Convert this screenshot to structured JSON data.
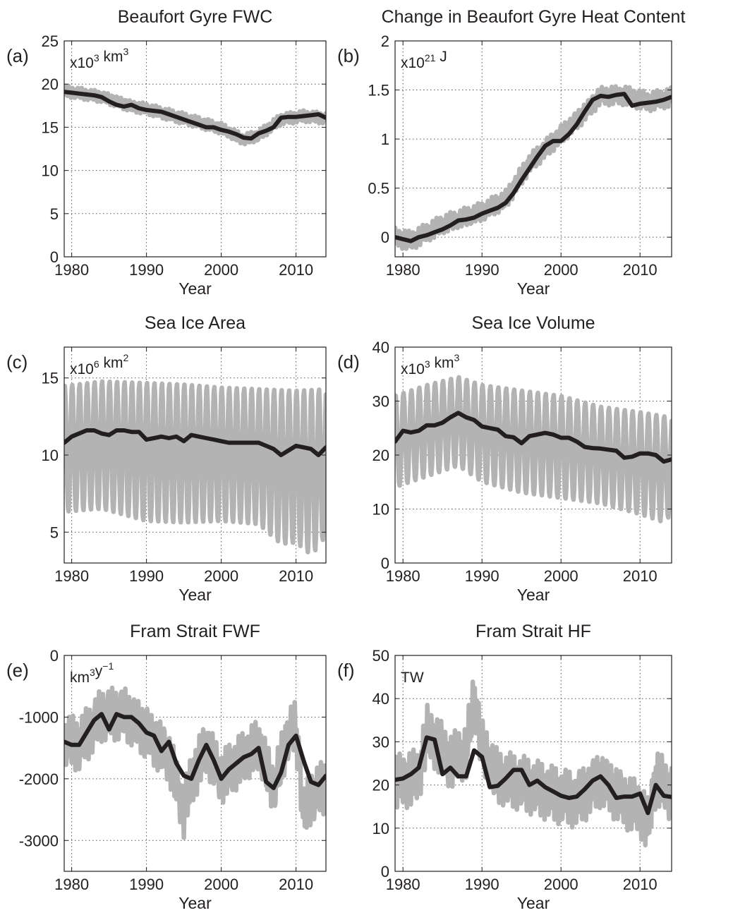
{
  "chart_data": [
    {
      "type": "line",
      "panel_label": "(a)",
      "title": "Beaufort Gyre FWC",
      "unit_label": {
        "base": "x10",
        "exp": "3",
        "rest": " km",
        "exp2": "3"
      },
      "xlabel": "Year",
      "xlim": [
        1979,
        2014
      ],
      "ylim": [
        0,
        25
      ],
      "xticks": [
        1980,
        1990,
        2000,
        2010
      ],
      "yticks": [
        0,
        5,
        10,
        15,
        20,
        25
      ],
      "ytick_labels": [
        "0",
        "5",
        "10",
        "15",
        "20",
        "25"
      ],
      "grid": true,
      "series": [
        {
          "role": "monthly",
          "color": "#b3b3b3",
          "amplitude": 0.6,
          "x": [
            1979,
            1984,
            1988,
            1990,
            1995,
            2000,
            2003,
            2005,
            2008,
            2011,
            2014
          ],
          "y": [
            19.2,
            18.6,
            17.5,
            17.2,
            16.0,
            14.8,
            13.5,
            14.0,
            15.9,
            16.3,
            16.1
          ]
        },
        {
          "role": "annual",
          "color": "#231f20",
          "x": [
            1979,
            1980,
            1981,
            1982,
            1983,
            1984,
            1985,
            1986,
            1987,
            1988,
            1989,
            1990,
            1991,
            1992,
            1993,
            1994,
            1995,
            1996,
            1997,
            1998,
            1999,
            2000,
            2001,
            2002,
            2003,
            2004,
            2005,
            2006,
            2007,
            2008,
            2009,
            2010,
            2011,
            2012,
            2013,
            2014
          ],
          "y": [
            19.1,
            19.0,
            18.9,
            18.8,
            18.7,
            18.5,
            18.0,
            17.6,
            17.4,
            17.6,
            17.2,
            17.0,
            16.9,
            16.8,
            16.5,
            16.2,
            15.9,
            15.6,
            15.3,
            15.0,
            15.0,
            14.7,
            14.5,
            14.2,
            13.8,
            13.7,
            14.3,
            14.6,
            15.0,
            16.1,
            16.2,
            16.2,
            16.3,
            16.4,
            16.5,
            16.1
          ]
        }
      ]
    },
    {
      "type": "line",
      "panel_label": "(b)",
      "title": "Change in Beaufort Gyre Heat Content",
      "unit_label": {
        "base": "x10",
        "exp": "21",
        "rest": " J",
        "exp2": ""
      },
      "xlabel": "Year",
      "xlim": [
        1979,
        2014
      ],
      "ylim": [
        -0.2,
        2
      ],
      "xticks": [
        1980,
        1990,
        2000,
        2010
      ],
      "yticks": [
        0,
        0.5,
        1,
        1.5,
        2
      ],
      "ytick_labels": [
        "0",
        "0.5",
        "1",
        "1.5",
        "2"
      ],
      "grid": true,
      "series": [
        {
          "role": "monthly",
          "color": "#b3b3b3",
          "amplitude": 0.09,
          "x": [
            1979,
            1981,
            1985,
            1990,
            1993,
            1996,
            1999,
            2002,
            2005,
            2008,
            2011,
            2014
          ],
          "y": [
            0.0,
            -0.04,
            0.12,
            0.25,
            0.38,
            0.75,
            0.98,
            1.2,
            1.45,
            1.45,
            1.38,
            1.42
          ]
        },
        {
          "role": "annual",
          "color": "#231f20",
          "x": [
            1979,
            1980,
            1981,
            1982,
            1983,
            1984,
            1985,
            1986,
            1987,
            1988,
            1989,
            1990,
            1991,
            1992,
            1993,
            1994,
            1995,
            1996,
            1997,
            1998,
            1999,
            2000,
            2001,
            2002,
            2003,
            2004,
            2005,
            2006,
            2007,
            2008,
            2009,
            2010,
            2011,
            2012,
            2013,
            2014
          ],
          "y": [
            0.0,
            -0.02,
            -0.04,
            0.0,
            0.02,
            0.05,
            0.08,
            0.12,
            0.17,
            0.18,
            0.2,
            0.24,
            0.27,
            0.3,
            0.35,
            0.45,
            0.58,
            0.7,
            0.82,
            0.93,
            0.98,
            0.98,
            1.05,
            1.15,
            1.28,
            1.4,
            1.44,
            1.43,
            1.45,
            1.46,
            1.34,
            1.36,
            1.37,
            1.38,
            1.4,
            1.43
          ]
        }
      ]
    },
    {
      "type": "line",
      "panel_label": "(c)",
      "title": "Sea Ice Area",
      "unit_label": {
        "base": "x10",
        "exp": "6",
        "rest": " km",
        "exp2": "2"
      },
      "xlabel": "Year",
      "xlim": [
        1979,
        2014
      ],
      "ylim": [
        3,
        17
      ],
      "xticks": [
        1980,
        1990,
        2000,
        2010
      ],
      "yticks": [
        5,
        10,
        15
      ],
      "ytick_labels": [
        "5",
        "10",
        "15"
      ],
      "grid": true,
      "series": [
        {
          "role": "monthly_max",
          "color": "#b3b3b3",
          "x": [
            1979,
            1984,
            1990,
            1995,
            2000,
            2005,
            2010,
            2014
          ],
          "y": [
            14.5,
            14.8,
            14.7,
            14.6,
            14.4,
            14.3,
            14.2,
            14.3
          ]
        },
        {
          "role": "monthly_min",
          "color": "#b3b3b3",
          "x": [
            1979,
            1984,
            1990,
            1995,
            2000,
            2005,
            2008,
            2010,
            2012,
            2013,
            2014
          ],
          "y": [
            6.3,
            6.5,
            5.7,
            5.6,
            5.7,
            5.5,
            4.2,
            4.3,
            3.5,
            4.0,
            4.8
          ]
        },
        {
          "role": "annual",
          "color": "#231f20",
          "x": [
            1979,
            1980,
            1981,
            1982,
            1983,
            1984,
            1985,
            1986,
            1987,
            1988,
            1989,
            1990,
            1991,
            1992,
            1993,
            1994,
            1995,
            1996,
            1997,
            1998,
            1999,
            2000,
            2001,
            2002,
            2003,
            2004,
            2005,
            2006,
            2007,
            2008,
            2009,
            2010,
            2011,
            2012,
            2013,
            2014
          ],
          "y": [
            10.8,
            11.2,
            11.4,
            11.6,
            11.6,
            11.4,
            11.3,
            11.6,
            11.6,
            11.5,
            11.5,
            11.0,
            11.1,
            11.2,
            11.1,
            11.2,
            10.9,
            11.3,
            11.2,
            11.1,
            11.0,
            10.9,
            10.8,
            10.8,
            10.8,
            10.8,
            10.8,
            10.6,
            10.4,
            10.0,
            10.3,
            10.6,
            10.5,
            10.4,
            10.0,
            10.5
          ]
        }
      ]
    },
    {
      "type": "line",
      "panel_label": "(d)",
      "title": "Sea Ice Volume",
      "unit_label": {
        "base": "x10",
        "exp": "3",
        "rest": " km",
        "exp2": "3"
      },
      "xlabel": "Year",
      "xlim": [
        1979,
        2014
      ],
      "ylim": [
        0,
        40
      ],
      "xticks": [
        1980,
        1990,
        2000,
        2010
      ],
      "yticks": [
        0,
        10,
        20,
        30,
        40
      ],
      "ytick_labels": [
        "0",
        "10",
        "20",
        "30",
        "40"
      ],
      "grid": true,
      "series": [
        {
          "role": "monthly_max",
          "color": "#b3b3b3",
          "x": [
            1979,
            1983,
            1987,
            1990,
            1995,
            2000,
            2005,
            2010,
            2014
          ],
          "y": [
            31,
            33,
            34.5,
            33,
            32,
            31,
            29,
            28,
            27
          ]
        },
        {
          "role": "monthly_min",
          "color": "#b3b3b3",
          "x": [
            1979,
            1983,
            1987,
            1990,
            1995,
            2000,
            2005,
            2010,
            2013,
            2014
          ],
          "y": [
            14,
            16,
            18,
            15,
            13,
            12,
            11,
            9,
            7.5,
            9
          ]
        },
        {
          "role": "annual",
          "color": "#231f20",
          "x": [
            1979,
            1980,
            1981,
            1982,
            1983,
            1984,
            1985,
            1986,
            1987,
            1988,
            1989,
            1990,
            1991,
            1992,
            1993,
            1994,
            1995,
            1996,
            1997,
            1998,
            1999,
            2000,
            2001,
            2002,
            2003,
            2004,
            2005,
            2006,
            2007,
            2008,
            2009,
            2010,
            2011,
            2012,
            2013,
            2014
          ],
          "y": [
            22.5,
            24.5,
            24.2,
            24.5,
            25.5,
            25.5,
            26.0,
            27.0,
            27.8,
            27.0,
            26.5,
            25.3,
            25.0,
            24.7,
            23.5,
            23.3,
            22.2,
            23.5,
            23.8,
            24.1,
            23.8,
            23.2,
            23.2,
            22.5,
            21.5,
            21.3,
            21.2,
            21.0,
            20.8,
            19.5,
            19.7,
            20.3,
            20.3,
            20.0,
            18.8,
            19.2
          ]
        }
      ]
    },
    {
      "type": "line",
      "panel_label": "(e)",
      "title": "Fram Strait FWF",
      "unit_label": {
        "base": "km",
        "exp": "3",
        "rest": "y",
        "exp2": "−1"
      },
      "xlabel": "Year",
      "xlim": [
        1979,
        2014
      ],
      "ylim": [
        -3500,
        0
      ],
      "xticks": [
        1980,
        1990,
        2000,
        2010
      ],
      "yticks": [
        -3000,
        -2000,
        -1000,
        0
      ],
      "ytick_labels": [
        "-3000",
        "-2000",
        "-1000",
        "0"
      ],
      "grid": true,
      "series": [
        {
          "role": "monthly",
          "color": "#b3b3b3",
          "amplitude": 400,
          "x": [
            1979,
            1981,
            1984,
            1987,
            1990,
            1993,
            1995,
            1996,
            1998,
            2000,
            2002,
            2004,
            2005,
            2007,
            2009,
            2010,
            2011,
            2012,
            2014
          ],
          "y": [
            -1400,
            -1450,
            -950,
            -900,
            -1200,
            -1600,
            -2500,
            -2000,
            -1500,
            -2000,
            -1800,
            -1600,
            -1500,
            -2200,
            -1300,
            -1200,
            -2600,
            -2300,
            -2100
          ]
        },
        {
          "role": "annual",
          "color": "#231f20",
          "x": [
            1979,
            1980,
            1981,
            1982,
            1983,
            1984,
            1985,
            1986,
            1987,
            1988,
            1989,
            1990,
            1991,
            1992,
            1993,
            1994,
            1995,
            1996,
            1997,
            1998,
            1999,
            2000,
            2001,
            2002,
            2003,
            2004,
            2005,
            2006,
            2007,
            2008,
            2009,
            2010,
            2011,
            2012,
            2013,
            2014
          ],
          "y": [
            -1400,
            -1450,
            -1450,
            -1250,
            -1050,
            -950,
            -1200,
            -950,
            -1000,
            -1000,
            -1100,
            -1250,
            -1300,
            -1550,
            -1400,
            -1750,
            -1950,
            -2000,
            -1700,
            -1450,
            -1700,
            -2000,
            -1850,
            -1750,
            -1650,
            -1600,
            -1500,
            -2050,
            -2150,
            -1900,
            -1450,
            -1300,
            -1700,
            -2050,
            -2100,
            -1950
          ]
        }
      ]
    },
    {
      "type": "line",
      "panel_label": "(f)",
      "title": "Fram Strait HF",
      "unit_label": {
        "base": "TW",
        "exp": "",
        "rest": "",
        "exp2": ""
      },
      "xlabel": "Year",
      "xlim": [
        1979,
        2014
      ],
      "ylim": [
        0,
        50
      ],
      "xticks": [
        1980,
        1990,
        2000,
        2010
      ],
      "yticks": [
        0,
        10,
        20,
        30,
        40,
        50
      ],
      "ytick_labels": [
        "0",
        "10",
        "20",
        "30",
        "40",
        "50"
      ],
      "grid": true,
      "series": [
        {
          "role": "monthly",
          "color": "#b3b3b3",
          "amplitude": 6,
          "x": [
            1979,
            1982,
            1983,
            1984,
            1986,
            1988,
            1989,
            1990,
            1992,
            1995,
            1999,
            2002,
            2005,
            2008,
            2010,
            2011,
            2012,
            2013,
            2014
          ],
          "y": [
            21,
            22,
            32,
            30,
            25,
            27,
            40,
            28,
            21,
            20,
            18,
            17,
            22,
            17,
            15,
            11,
            22,
            20,
            18
          ]
        },
        {
          "role": "annual",
          "color": "#231f20",
          "x": [
            1979,
            1980,
            1981,
            1982,
            1983,
            1984,
            1985,
            1986,
            1987,
            1988,
            1989,
            1990,
            1991,
            1992,
            1993,
            1994,
            1995,
            1996,
            1997,
            1998,
            1999,
            2000,
            2001,
            2002,
            2003,
            2004,
            2005,
            2006,
            2007,
            2008,
            2009,
            2010,
            2011,
            2012,
            2013,
            2014
          ],
          "y": [
            21.2,
            21.5,
            22.5,
            24.0,
            31.0,
            30.5,
            22.5,
            24.0,
            22.0,
            22.0,
            28.0,
            26.5,
            19.5,
            19.8,
            21.5,
            23.5,
            23.5,
            20.0,
            21.0,
            19.5,
            18.5,
            17.5,
            17.0,
            17.3,
            19.0,
            21.0,
            22.0,
            20.0,
            17.0,
            17.3,
            17.3,
            18.0,
            13.5,
            20.0,
            17.5,
            17.2
          ]
        }
      ]
    }
  ]
}
